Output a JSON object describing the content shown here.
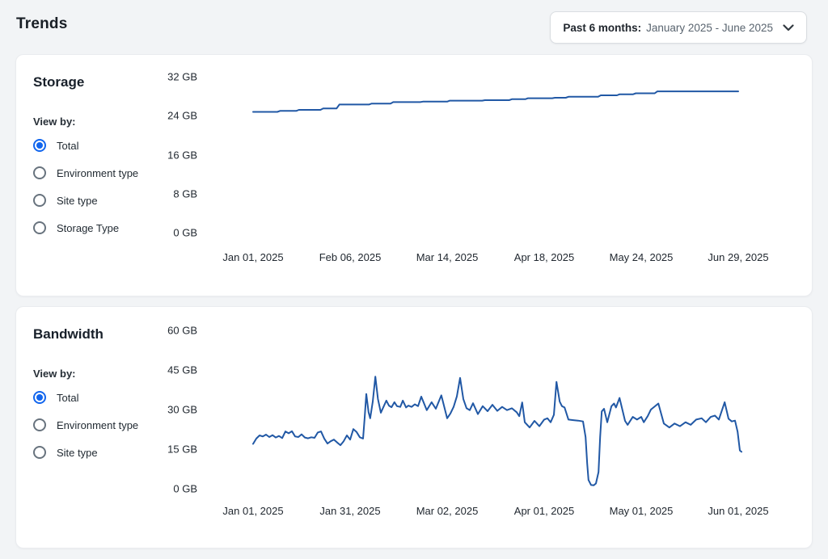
{
  "page": {
    "title": "Trends"
  },
  "date_filter": {
    "label": "Past 6 months:",
    "value": "January 2025 - June 2025",
    "icon": "chevron-down-icon"
  },
  "colors": {
    "accent_blue": "#1266ee",
    "line_blue": "#2158a5",
    "page_bg": "#f2f4f6",
    "panel_bg": "#ffffff"
  },
  "panels": [
    {
      "id": "storage",
      "title": "Storage",
      "view_by_label": "View by:",
      "options": [
        {
          "label": "Total",
          "selected": true
        },
        {
          "label": "Environment type",
          "selected": false
        },
        {
          "label": "Site type",
          "selected": false
        },
        {
          "label": "Storage Type",
          "selected": false
        }
      ],
      "chart_data": {
        "type": "line",
        "style": "step",
        "title": "Storage",
        "unit": "GB",
        "x_axis": "date",
        "ylim": [
          0,
          32
        ],
        "days_span": 180,
        "y_ticks": [
          {
            "value": 32,
            "label": "32 GB"
          },
          {
            "value": 24,
            "label": "24 GB"
          },
          {
            "value": 16,
            "label": "16 GB"
          },
          {
            "value": 8,
            "label": "8 GB"
          },
          {
            "value": 0,
            "label": "0 GB"
          }
        ],
        "x_ticks": [
          {
            "day": 0,
            "label": "Jan 01, 2025"
          },
          {
            "day": 36,
            "label": "Feb 06, 2025"
          },
          {
            "day": 72,
            "label": "Mar 14, 2025"
          },
          {
            "day": 108,
            "label": "Apr 18, 2025"
          },
          {
            "day": 144,
            "label": "May 24, 2025"
          },
          {
            "day": 180,
            "label": "Jun 29, 2025"
          }
        ],
        "points": [
          [
            0,
            24.8
          ],
          [
            9,
            24.8
          ],
          [
            10,
            25.0
          ],
          [
            16,
            25.0
          ],
          [
            17,
            25.2
          ],
          [
            25,
            25.2
          ],
          [
            26,
            25.5
          ],
          [
            31,
            25.5
          ],
          [
            32,
            26.3
          ],
          [
            43,
            26.3
          ],
          [
            44,
            26.5
          ],
          [
            51,
            26.5
          ],
          [
            52,
            26.8
          ],
          [
            62,
            26.8
          ],
          [
            63,
            26.9
          ],
          [
            72,
            26.9
          ],
          [
            73,
            27.1
          ],
          [
            85,
            27.1
          ],
          [
            86,
            27.2
          ],
          [
            95,
            27.2
          ],
          [
            96,
            27.4
          ],
          [
            101,
            27.4
          ],
          [
            102,
            27.6
          ],
          [
            111,
            27.6
          ],
          [
            112,
            27.7
          ],
          [
            116,
            27.7
          ],
          [
            117,
            27.9
          ],
          [
            128,
            27.9
          ],
          [
            129,
            28.2
          ],
          [
            135,
            28.2
          ],
          [
            136,
            28.4
          ],
          [
            141,
            28.4
          ],
          [
            142,
            28.6
          ],
          [
            149,
            28.6
          ],
          [
            150,
            29.0
          ],
          [
            180,
            29.0
          ]
        ]
      }
    },
    {
      "id": "bandwidth",
      "title": "Bandwidth",
      "view_by_label": "View by:",
      "options": [
        {
          "label": "Total",
          "selected": true
        },
        {
          "label": "Environment type",
          "selected": false
        },
        {
          "label": "Site type",
          "selected": false
        }
      ],
      "chart_data": {
        "type": "line",
        "style": "smooth",
        "title": "Bandwidth",
        "unit": "GB",
        "x_axis": "date",
        "ylim": [
          0,
          60
        ],
        "days_span": 150,
        "y_ticks": [
          {
            "value": 60,
            "label": "60 GB"
          },
          {
            "value": 45,
            "label": "45 GB"
          },
          {
            "value": 30,
            "label": "30 GB"
          },
          {
            "value": 15,
            "label": "15 GB"
          },
          {
            "value": 0,
            "label": "0 GB"
          }
        ],
        "x_ticks": [
          {
            "day": 0,
            "label": "Jan 01, 2025"
          },
          {
            "day": 30,
            "label": "Jan 31, 2025"
          },
          {
            "day": 60,
            "label": "Mar 02, 2025"
          },
          {
            "day": 90,
            "label": "Apr 01, 2025"
          },
          {
            "day": 120,
            "label": "May 01, 2025"
          },
          {
            "day": 150,
            "label": "Jun 01, 2025"
          }
        ],
        "points": [
          [
            0,
            17
          ],
          [
            1,
            19
          ],
          [
            2,
            20.2
          ],
          [
            3,
            19.8
          ],
          [
            4,
            20.5
          ],
          [
            5,
            19.6
          ],
          [
            6,
            20.3
          ],
          [
            7,
            19.4
          ],
          [
            8,
            20
          ],
          [
            9,
            19.2
          ],
          [
            10,
            21.7
          ],
          [
            11,
            21
          ],
          [
            12,
            21.8
          ],
          [
            13,
            19.8
          ],
          [
            14,
            19.6
          ],
          [
            15,
            20.6
          ],
          [
            16,
            19.4
          ],
          [
            17,
            19.1
          ],
          [
            18,
            19.5
          ],
          [
            19,
            19.3
          ],
          [
            20,
            21.3
          ],
          [
            21,
            21.7
          ],
          [
            22,
            19
          ],
          [
            23,
            17.1
          ],
          [
            24,
            18
          ],
          [
            25,
            18.6
          ],
          [
            26,
            17.5
          ],
          [
            27,
            16.5
          ],
          [
            28,
            18
          ],
          [
            29,
            20.2
          ],
          [
            30,
            18.6
          ],
          [
            31,
            22.6
          ],
          [
            32,
            21.5
          ],
          [
            33,
            19.5
          ],
          [
            34,
            19
          ],
          [
            34.5,
            27
          ],
          [
            35,
            35.9
          ],
          [
            35.7,
            29
          ],
          [
            36.2,
            26.7
          ],
          [
            37,
            33
          ],
          [
            37.8,
            42.5
          ],
          [
            38.6,
            34
          ],
          [
            39.5,
            28.8
          ],
          [
            40.5,
            31.5
          ],
          [
            41.2,
            33.4
          ],
          [
            42,
            31.5
          ],
          [
            42.8,
            30.9
          ],
          [
            43.7,
            32.8
          ],
          [
            44.5,
            31.3
          ],
          [
            45.5,
            31
          ],
          [
            46.3,
            33.4
          ],
          [
            47.3,
            30.8
          ],
          [
            48,
            31.5
          ],
          [
            49,
            31
          ],
          [
            50,
            32
          ],
          [
            51,
            31.3
          ],
          [
            52,
            34.9
          ],
          [
            53.7,
            29.8
          ],
          [
            55.2,
            32.8
          ],
          [
            56.5,
            30.3
          ],
          [
            58.2,
            35.4
          ],
          [
            60,
            26.7
          ],
          [
            61,
            28.5
          ],
          [
            62,
            31
          ],
          [
            63,
            35
          ],
          [
            64,
            42
          ],
          [
            65,
            34
          ],
          [
            66,
            30.5
          ],
          [
            67,
            29.8
          ],
          [
            68,
            32.4
          ],
          [
            69.5,
            28.3
          ],
          [
            71,
            31.3
          ],
          [
            72.5,
            29.4
          ],
          [
            74,
            31.8
          ],
          [
            75.5,
            29.5
          ],
          [
            77,
            31
          ],
          [
            78.5,
            29.8
          ],
          [
            80,
            30.5
          ],
          [
            81.5,
            29
          ],
          [
            82.3,
            27.5
          ],
          [
            83.2,
            32.7
          ],
          [
            84,
            25.2
          ],
          [
            85.5,
            23.2
          ],
          [
            87,
            25.7
          ],
          [
            88.5,
            23.7
          ],
          [
            90,
            26.2
          ],
          [
            91,
            26.7
          ],
          [
            92,
            25.2
          ],
          [
            93,
            28
          ],
          [
            93.8,
            40.5
          ],
          [
            94.8,
            33
          ],
          [
            95.5,
            31.3
          ],
          [
            96.3,
            30.8
          ],
          [
            97.5,
            26.2
          ],
          [
            99,
            26
          ],
          [
            100.5,
            25.8
          ],
          [
            102,
            25.5
          ],
          [
            102.8,
            19.6
          ],
          [
            103.3,
            9.5
          ],
          [
            103.7,
            3.3
          ],
          [
            104.5,
            1.4
          ],
          [
            105.3,
            1.3
          ],
          [
            106,
            2
          ],
          [
            106.8,
            6.3
          ],
          [
            107.3,
            19.6
          ],
          [
            107.8,
            29.3
          ],
          [
            108.5,
            30.3
          ],
          [
            109.5,
            25.2
          ],
          [
            110.8,
            31.3
          ],
          [
            111.6,
            32.3
          ],
          [
            112.2,
            30.8
          ],
          [
            113.3,
            34.4
          ],
          [
            115,
            25.7
          ],
          [
            115.8,
            24.2
          ],
          [
            117.4,
            27.2
          ],
          [
            118.7,
            26.2
          ],
          [
            120,
            27.2
          ],
          [
            120.8,
            25.2
          ],
          [
            122,
            27.5
          ],
          [
            123,
            30
          ],
          [
            125.3,
            32.3
          ],
          [
            127,
            24.7
          ],
          [
            128.7,
            23.2
          ],
          [
            130.3,
            24.7
          ],
          [
            132,
            23.7
          ],
          [
            133.7,
            25.2
          ],
          [
            135.3,
            24.2
          ],
          [
            137,
            26.2
          ],
          [
            138.7,
            26.7
          ],
          [
            140,
            25.2
          ],
          [
            141.5,
            27.2
          ],
          [
            142.8,
            27.7
          ],
          [
            144,
            26.2
          ],
          [
            145.8,
            32.8
          ],
          [
            147,
            26.5
          ],
          [
            148,
            25.5
          ],
          [
            149,
            25.8
          ],
          [
            149.8,
            21.6
          ],
          [
            150.5,
            14.5
          ],
          [
            151,
            14
          ]
        ]
      }
    }
  ]
}
